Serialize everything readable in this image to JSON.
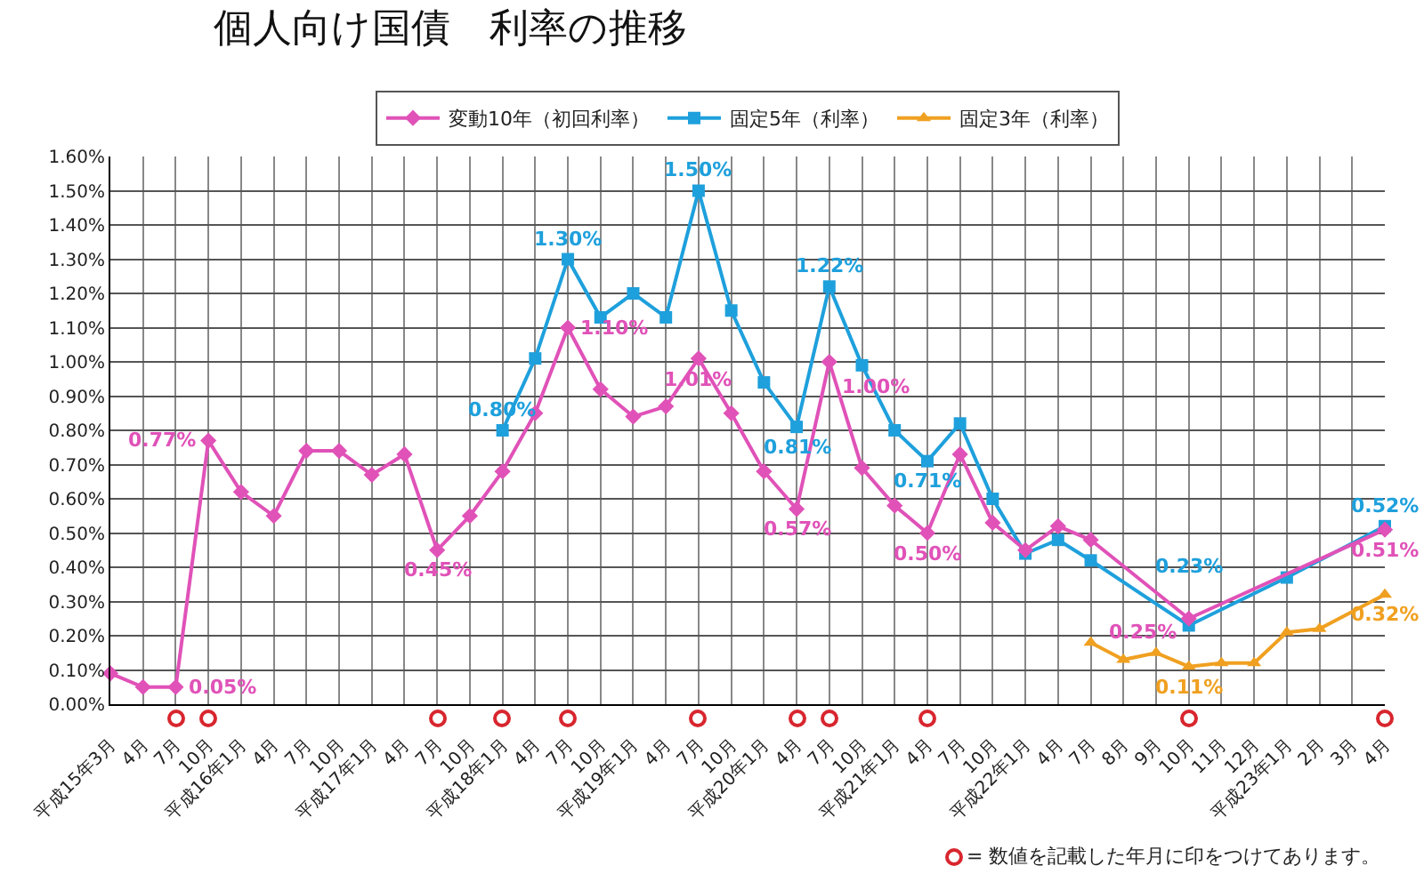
{
  "chart_data": {
    "type": "line",
    "title": "個人向け国債　利率の推移",
    "categories": [
      "平成15年3月",
      "4月",
      "7月",
      "10月",
      "平成16年1月",
      "4月",
      "7月",
      "10月",
      "平成17年1月",
      "4月",
      "7月",
      "10月",
      "平成18年1月",
      "4月",
      "7月",
      "10月",
      "平成19年1月",
      "4月",
      "7月",
      "10月",
      "平成20年1月",
      "4月",
      "7月",
      "10月",
      "平成21年1月",
      "4月",
      "7月",
      "10月",
      "平成22年1月",
      "4月",
      "7月",
      "8月",
      "9月",
      "10月",
      "11月",
      "12月",
      "平成23年1月",
      "2月",
      "3月",
      "4月"
    ],
    "series": [
      {
        "name": "変動10年（初回利率）",
        "color": "#e052b8",
        "marker": "diamond",
        "values": [
          0.09,
          0.05,
          0.05,
          0.77,
          0.62,
          0.55,
          0.74,
          0.74,
          0.67,
          0.73,
          0.45,
          0.55,
          0.68,
          0.85,
          1.1,
          0.92,
          0.84,
          0.87,
          1.01,
          0.85,
          0.68,
          0.57,
          1.0,
          0.69,
          0.58,
          0.5,
          0.73,
          0.53,
          0.45,
          0.52,
          0.48,
          null,
          null,
          0.25,
          null,
          null,
          null,
          null,
          null,
          0.51
        ],
        "value_labels": [
          null,
          null,
          "0.05%",
          "0.77%",
          null,
          null,
          null,
          null,
          null,
          null,
          "0.45%",
          null,
          null,
          null,
          "1.10%",
          null,
          null,
          null,
          "1.01%",
          null,
          null,
          "0.57%",
          "1.00%",
          null,
          null,
          "0.50%",
          null,
          null,
          null,
          null,
          null,
          null,
          null,
          "0.25%",
          null,
          null,
          null,
          null,
          null,
          "0.51%"
        ]
      },
      {
        "name": "固定5年（利率）",
        "color": "#1ea0dc",
        "marker": "square",
        "values": [
          null,
          null,
          null,
          null,
          null,
          null,
          null,
          null,
          null,
          null,
          null,
          null,
          0.8,
          1.01,
          1.3,
          1.13,
          1.2,
          1.13,
          1.5,
          1.15,
          0.94,
          0.81,
          1.22,
          0.99,
          0.8,
          0.71,
          0.82,
          0.6,
          0.44,
          0.48,
          0.42,
          null,
          null,
          0.23,
          null,
          null,
          0.37,
          null,
          null,
          0.52
        ],
        "value_labels": [
          null,
          null,
          null,
          null,
          null,
          null,
          null,
          null,
          null,
          null,
          null,
          null,
          "0.80%",
          null,
          "1.30%",
          null,
          null,
          null,
          "1.50%",
          null,
          null,
          "0.81%",
          "1.22%",
          null,
          null,
          "0.71%",
          null,
          null,
          null,
          null,
          null,
          null,
          null,
          "0.23%",
          null,
          null,
          null,
          null,
          null,
          "0.52%"
        ]
      },
      {
        "name": "固定3年（利率）",
        "color": "#f0a020",
        "marker": "triangle",
        "values": [
          null,
          null,
          null,
          null,
          null,
          null,
          null,
          null,
          null,
          null,
          null,
          null,
          null,
          null,
          null,
          null,
          null,
          null,
          null,
          null,
          null,
          null,
          null,
          null,
          null,
          null,
          null,
          null,
          null,
          null,
          0.18,
          0.13,
          0.15,
          0.11,
          0.12,
          0.12,
          0.21,
          0.22,
          null,
          0.32
        ],
        "value_labels": [
          null,
          null,
          null,
          null,
          null,
          null,
          null,
          null,
          null,
          null,
          null,
          null,
          null,
          null,
          null,
          null,
          null,
          null,
          null,
          null,
          null,
          null,
          null,
          null,
          null,
          null,
          null,
          null,
          null,
          null,
          null,
          null,
          null,
          "0.11%",
          null,
          null,
          null,
          null,
          null,
          "0.32%"
        ]
      }
    ],
    "ylim": [
      0,
      1.6
    ],
    "yticks": [
      {
        "value": 0,
        "label": "0.00%"
      },
      {
        "value": 0.1,
        "label": "0.10%"
      },
      {
        "value": 0.2,
        "label": "0.20%"
      },
      {
        "value": 0.3,
        "label": "0.30%"
      },
      {
        "value": 0.4,
        "label": "0.40%"
      },
      {
        "value": 0.5,
        "label": "0.50%"
      },
      {
        "value": 0.6,
        "label": "0.60%"
      },
      {
        "value": 0.7,
        "label": "0.70%"
      },
      {
        "value": 0.8,
        "label": "0.80%"
      },
      {
        "value": 0.9,
        "label": "0.90%"
      },
      {
        "value": 1.0,
        "label": "1.00%"
      },
      {
        "value": 1.1,
        "label": "1.10%"
      },
      {
        "value": 1.2,
        "label": "1.20%"
      },
      {
        "value": 1.3,
        "label": "1.30%"
      },
      {
        "value": 1.4,
        "label": "1.40%"
      },
      {
        "value": 1.5,
        "label": "1.50%"
      },
      {
        "value": 1.6,
        "label": "1.60%"
      }
    ],
    "grid": true,
    "legend": "top",
    "annotations": [
      "= 数値を記載した年月に印をつけてあります。"
    ]
  }
}
